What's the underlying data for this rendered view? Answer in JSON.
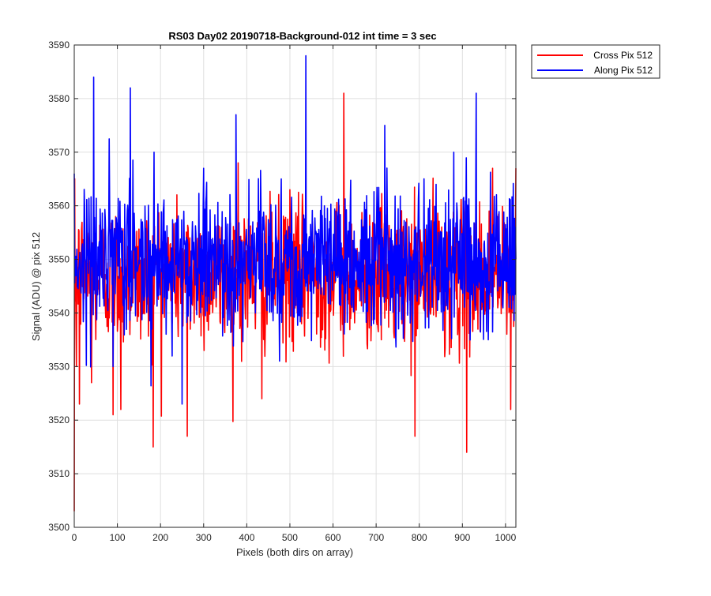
{
  "chart_data": {
    "type": "line",
    "title": "RS03 Day02 20190718-Background-012 int time = 3 sec",
    "xlabel": "Pixels (both dirs on array)",
    "ylabel": "Signal (ADU) @ pix 512",
    "xlim": [
      0,
      1024
    ],
    "ylim": [
      3500,
      3590
    ],
    "xticks": [
      0,
      100,
      200,
      300,
      400,
      500,
      600,
      700,
      800,
      900,
      1000
    ],
    "yticks": [
      3500,
      3510,
      3520,
      3530,
      3540,
      3550,
      3560,
      3570,
      3580,
      3590
    ],
    "grid": true,
    "legend_position": "outside-top-right",
    "series": [
      {
        "name": "Cross Pix 512",
        "color": "#ff0000",
        "mean": 3547,
        "range": [
          3503,
          3581
        ],
        "points": [
          [
            0,
            3503
          ],
          [
            5,
            3530
          ],
          [
            12,
            3523
          ],
          [
            40,
            3527
          ],
          [
            90,
            3521
          ],
          [
            108,
            3522
          ],
          [
            160,
            3540
          ],
          [
            183,
            3515
          ],
          [
            262,
            3517
          ],
          [
            380,
            3568
          ],
          [
            435,
            3524
          ],
          [
            500,
            3563
          ],
          [
            570,
            3550
          ],
          [
            625,
            3581
          ],
          [
            700,
            3545
          ],
          [
            760,
            3538
          ],
          [
            790,
            3517
          ],
          [
            830,
            3553
          ],
          [
            910,
            3514
          ],
          [
            970,
            3567
          ],
          [
            1012,
            3522
          ],
          [
            1024,
            3567
          ]
        ]
      },
      {
        "name": "Along Pix 512",
        "color": "#0000ff",
        "mean": 3550,
        "range": [
          3523,
          3588
        ],
        "points": [
          [
            0,
            3566
          ],
          [
            20,
            3548
          ],
          [
            45,
            3584
          ],
          [
            90,
            3530
          ],
          [
            130,
            3582
          ],
          [
            170,
            3543
          ],
          [
            185,
            3570
          ],
          [
            250,
            3523
          ],
          [
            300,
            3567
          ],
          [
            340,
            3550
          ],
          [
            375,
            3577
          ],
          [
            420,
            3540
          ],
          [
            480,
            3565
          ],
          [
            537,
            3588
          ],
          [
            580,
            3560
          ],
          [
            650,
            3545
          ],
          [
            720,
            3575
          ],
          [
            780,
            3540
          ],
          [
            850,
            3550
          ],
          [
            880,
            3570
          ],
          [
            932,
            3581
          ],
          [
            960,
            3535
          ],
          [
            1024,
            3550
          ]
        ]
      }
    ]
  }
}
